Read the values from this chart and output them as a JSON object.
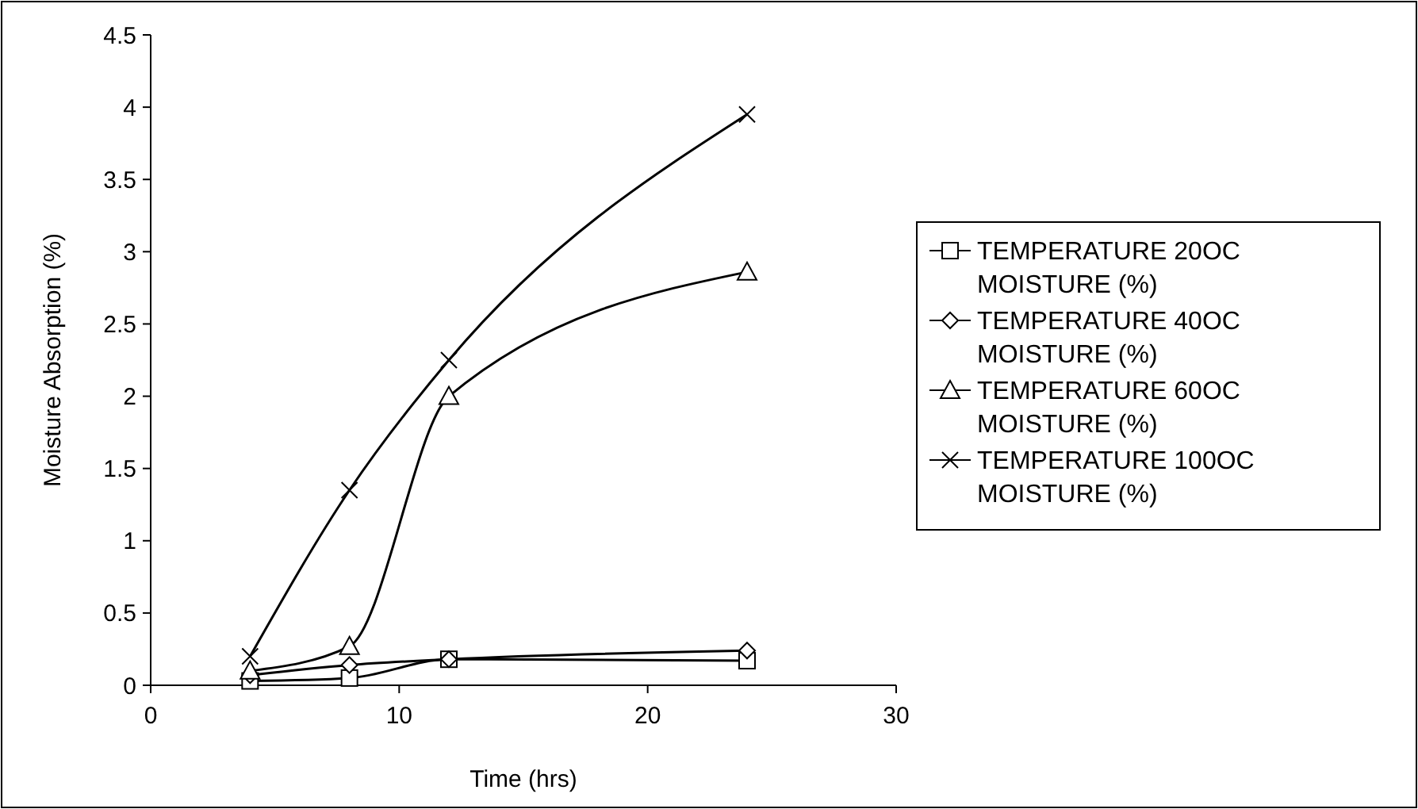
{
  "chart_data": {
    "type": "line",
    "xlabel": "Time (hrs)",
    "ylabel": "Moisture Absorption (%)",
    "xlim": [
      0,
      30
    ],
    "xticks": [
      0,
      10,
      20,
      30
    ],
    "ylim": [
      0,
      4.5
    ],
    "yticks": [
      0,
      0.5,
      1,
      1.5,
      2,
      2.5,
      3,
      3.5,
      4,
      4.5
    ],
    "grid": false,
    "legend": "right",
    "x": [
      4,
      8,
      12,
      24
    ],
    "series": [
      {
        "name": "TEMPERATURE 20OC MOISTURE (%)",
        "color": "#000000",
        "marker": "square",
        "values": [
          0.03,
          0.05,
          0.18,
          0.17
        ]
      },
      {
        "name": "TEMPERATURE 40OC MOISTURE (%)",
        "color": "#000000",
        "marker": "diamond",
        "values": [
          0.07,
          0.14,
          0.18,
          0.24
        ]
      },
      {
        "name": "TEMPERATURE 60OC MOISTURE (%)",
        "color": "#000000",
        "marker": "triangle",
        "values": [
          0.1,
          0.27,
          2.0,
          2.86
        ]
      },
      {
        "name": "TEMPERATURE 100OC MOISTURE (%)",
        "color": "#000000",
        "marker": "cross",
        "values": [
          0.2,
          1.35,
          2.25,
          3.95
        ]
      }
    ]
  }
}
